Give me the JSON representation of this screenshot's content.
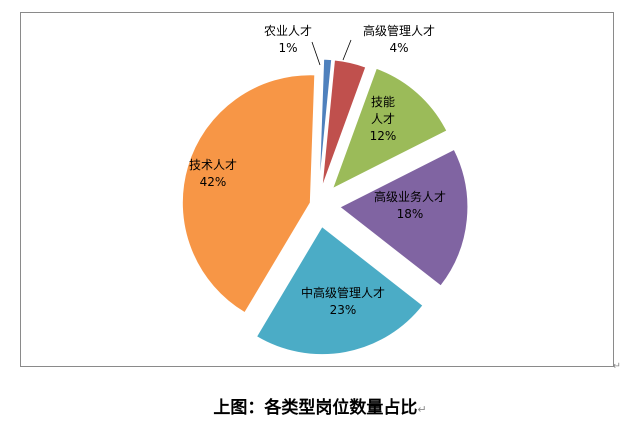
{
  "chart_data": {
    "type": "pie",
    "title": "",
    "slices": [
      {
        "label": "农业人才",
        "value": 1,
        "pct_label": "1%",
        "color": "#4f81bd"
      },
      {
        "label": "高级管理人才",
        "value": 4,
        "pct_label": "4%",
        "color": "#c0504d"
      },
      {
        "label": "技能人才",
        "label_lines": [
          "技能",
          "人才"
        ],
        "value": 12,
        "pct_label": "12%",
        "color": "#9bbb59"
      },
      {
        "label": "高级业务人才",
        "value": 18,
        "pct_label": "18%",
        "color": "#8064a2"
      },
      {
        "label": "中高级管理人才",
        "value": 23,
        "pct_label": "23%",
        "color": "#4bacc6"
      },
      {
        "label": "技术人才",
        "value": 42,
        "pct_label": "42%",
        "color": "#f79646"
      }
    ],
    "legend": "none",
    "exploded": true
  },
  "caption": "上图：各类型岗位数量占比",
  "para_mark": "↵"
}
